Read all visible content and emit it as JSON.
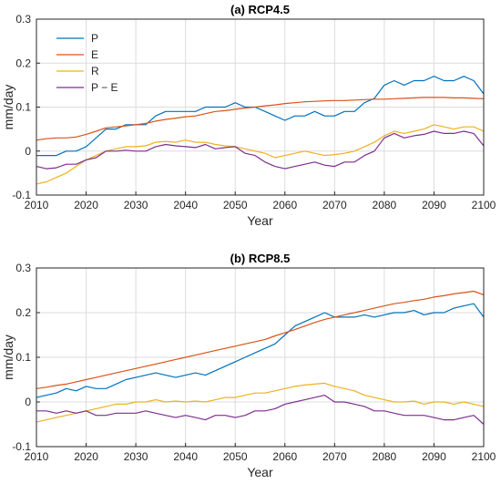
{
  "chart_data": [
    {
      "type": "line",
      "title": "(a) RCP4.5",
      "xlabel": "Year",
      "ylabel": "mm/day",
      "xlim": [
        2010,
        2100
      ],
      "ylim": [
        -0.1,
        0.3
      ],
      "xticks": [
        2010,
        2020,
        2030,
        2040,
        2050,
        2060,
        2070,
        2080,
        2090,
        2100
      ],
      "yticks": [
        -0.1,
        0,
        0.1,
        0.2,
        0.3
      ],
      "ytick_labels": [
        "-0.1",
        "0",
        "0.1",
        "0.2",
        "0.3"
      ],
      "grid": true,
      "legend": "top-left",
      "x": [
        2010,
        2012,
        2014,
        2016,
        2018,
        2020,
        2022,
        2024,
        2026,
        2028,
        2030,
        2032,
        2034,
        2036,
        2038,
        2040,
        2042,
        2044,
        2046,
        2048,
        2050,
        2052,
        2054,
        2056,
        2058,
        2060,
        2062,
        2064,
        2066,
        2068,
        2070,
        2072,
        2074,
        2076,
        2078,
        2080,
        2082,
        2084,
        2086,
        2088,
        2090,
        2092,
        2094,
        2096,
        2098,
        2100
      ],
      "series": [
        {
          "name": "P",
          "color": "#0072BD",
          "values": [
            -0.01,
            -0.01,
            -0.01,
            0.0,
            0.0,
            0.01,
            0.03,
            0.05,
            0.05,
            0.06,
            0.06,
            0.06,
            0.08,
            0.09,
            0.09,
            0.09,
            0.09,
            0.1,
            0.1,
            0.1,
            0.11,
            0.1,
            0.1,
            0.09,
            0.08,
            0.07,
            0.08,
            0.08,
            0.09,
            0.08,
            0.08,
            0.09,
            0.09,
            0.11,
            0.12,
            0.15,
            0.16,
            0.15,
            0.16,
            0.16,
            0.17,
            0.16,
            0.16,
            0.17,
            0.16,
            0.13
          ]
        },
        {
          "name": "E",
          "color": "#D95319",
          "values": [
            0.025,
            0.028,
            0.03,
            0.03,
            0.032,
            0.038,
            0.045,
            0.053,
            0.055,
            0.057,
            0.06,
            0.063,
            0.068,
            0.072,
            0.075,
            0.078,
            0.08,
            0.085,
            0.09,
            0.092,
            0.095,
            0.098,
            0.1,
            0.103,
            0.105,
            0.108,
            0.11,
            0.112,
            0.113,
            0.114,
            0.115,
            0.115,
            0.116,
            0.117,
            0.118,
            0.118,
            0.119,
            0.12,
            0.121,
            0.122,
            0.122,
            0.122,
            0.121,
            0.121,
            0.12,
            0.119
          ]
        },
        {
          "name": "R",
          "color": "#EDB120",
          "values": [
            -0.075,
            -0.07,
            -0.06,
            -0.05,
            -0.035,
            -0.02,
            -0.01,
            0.0,
            0.005,
            0.01,
            0.01,
            0.012,
            0.02,
            0.022,
            0.02,
            0.025,
            0.02,
            0.02,
            0.015,
            0.012,
            0.01,
            0.005,
            0.0,
            -0.005,
            -0.015,
            -0.01,
            -0.005,
            0.0,
            -0.005,
            -0.01,
            -0.008,
            -0.005,
            0.0,
            0.01,
            0.02,
            0.035,
            0.045,
            0.04,
            0.045,
            0.05,
            0.06,
            0.055,
            0.05,
            0.055,
            0.055,
            0.045
          ]
        },
        {
          "name": "P − E",
          "color": "#7E2F8E",
          "values": [
            -0.035,
            -0.04,
            -0.038,
            -0.03,
            -0.03,
            -0.02,
            -0.015,
            0.0,
            0.0,
            0.002,
            0.0,
            0.0,
            0.01,
            0.015,
            0.012,
            0.01,
            0.008,
            0.015,
            0.005,
            0.008,
            0.01,
            -0.005,
            -0.01,
            -0.025,
            -0.035,
            -0.04,
            -0.035,
            -0.03,
            -0.025,
            -0.032,
            -0.035,
            -0.025,
            -0.025,
            -0.01,
            0.0,
            0.03,
            0.04,
            0.03,
            0.035,
            0.038,
            0.045,
            0.04,
            0.04,
            0.045,
            0.04,
            0.012
          ]
        }
      ]
    },
    {
      "type": "line",
      "title": "(b) RCP8.5",
      "xlabel": "Year",
      "ylabel": "mm/day",
      "xlim": [
        2010,
        2100
      ],
      "ylim": [
        -0.1,
        0.3
      ],
      "xticks": [
        2010,
        2020,
        2030,
        2040,
        2050,
        2060,
        2070,
        2080,
        2090,
        2100
      ],
      "yticks": [
        -0.1,
        0,
        0.1,
        0.2,
        0.3
      ],
      "ytick_labels": [
        "-0.1",
        "0",
        "0.1",
        "0.2",
        "0.3"
      ],
      "grid": true,
      "x": [
        2010,
        2012,
        2014,
        2016,
        2018,
        2020,
        2022,
        2024,
        2026,
        2028,
        2030,
        2032,
        2034,
        2036,
        2038,
        2040,
        2042,
        2044,
        2046,
        2048,
        2050,
        2052,
        2054,
        2056,
        2058,
        2060,
        2062,
        2064,
        2066,
        2068,
        2070,
        2072,
        2074,
        2076,
        2078,
        2080,
        2082,
        2084,
        2086,
        2088,
        2090,
        2092,
        2094,
        2096,
        2098,
        2100
      ],
      "series": [
        {
          "name": "P",
          "color": "#0072BD",
          "values": [
            0.01,
            0.015,
            0.02,
            0.03,
            0.025,
            0.035,
            0.03,
            0.03,
            0.04,
            0.05,
            0.055,
            0.06,
            0.065,
            0.06,
            0.055,
            0.06,
            0.065,
            0.06,
            0.07,
            0.08,
            0.09,
            0.1,
            0.11,
            0.12,
            0.13,
            0.15,
            0.17,
            0.18,
            0.19,
            0.2,
            0.19,
            0.19,
            0.19,
            0.195,
            0.19,
            0.195,
            0.2,
            0.2,
            0.205,
            0.195,
            0.2,
            0.2,
            0.21,
            0.215,
            0.22,
            0.19
          ]
        },
        {
          "name": "E",
          "color": "#D95319",
          "values": [
            0.03,
            0.033,
            0.037,
            0.04,
            0.045,
            0.05,
            0.055,
            0.06,
            0.065,
            0.07,
            0.075,
            0.08,
            0.085,
            0.09,
            0.095,
            0.1,
            0.105,
            0.11,
            0.115,
            0.12,
            0.125,
            0.13,
            0.135,
            0.14,
            0.148,
            0.155,
            0.162,
            0.17,
            0.178,
            0.185,
            0.19,
            0.195,
            0.2,
            0.205,
            0.21,
            0.215,
            0.22,
            0.223,
            0.227,
            0.23,
            0.235,
            0.238,
            0.242,
            0.245,
            0.248,
            0.24
          ]
        },
        {
          "name": "R",
          "color": "#EDB120",
          "values": [
            -0.045,
            -0.04,
            -0.035,
            -0.03,
            -0.025,
            -0.02,
            -0.015,
            -0.01,
            -0.005,
            -0.005,
            0.0,
            0.0,
            0.005,
            0.0,
            0.002,
            0.0,
            0.002,
            0.0,
            0.005,
            0.01,
            0.01,
            0.015,
            0.02,
            0.02,
            0.025,
            0.03,
            0.035,
            0.038,
            0.04,
            0.042,
            0.035,
            0.03,
            0.025,
            0.015,
            0.01,
            0.005,
            0.0,
            0.0,
            0.002,
            -0.005,
            0.0,
            0.0,
            -0.005,
            0.0,
            -0.005,
            -0.01
          ]
        },
        {
          "name": "P − E",
          "color": "#7E2F8E",
          "values": [
            -0.02,
            -0.02,
            -0.025,
            -0.02,
            -0.025,
            -0.02,
            -0.03,
            -0.03,
            -0.025,
            -0.025,
            -0.025,
            -0.02,
            -0.025,
            -0.03,
            -0.035,
            -0.03,
            -0.035,
            -0.04,
            -0.03,
            -0.03,
            -0.035,
            -0.03,
            -0.02,
            -0.02,
            -0.015,
            -0.005,
            0.0,
            0.005,
            0.01,
            0.015,
            0.0,
            0.0,
            -0.005,
            -0.01,
            -0.02,
            -0.02,
            -0.025,
            -0.03,
            -0.03,
            -0.03,
            -0.035,
            -0.04,
            -0.04,
            -0.035,
            -0.03,
            -0.05
          ]
        }
      ]
    }
  ]
}
